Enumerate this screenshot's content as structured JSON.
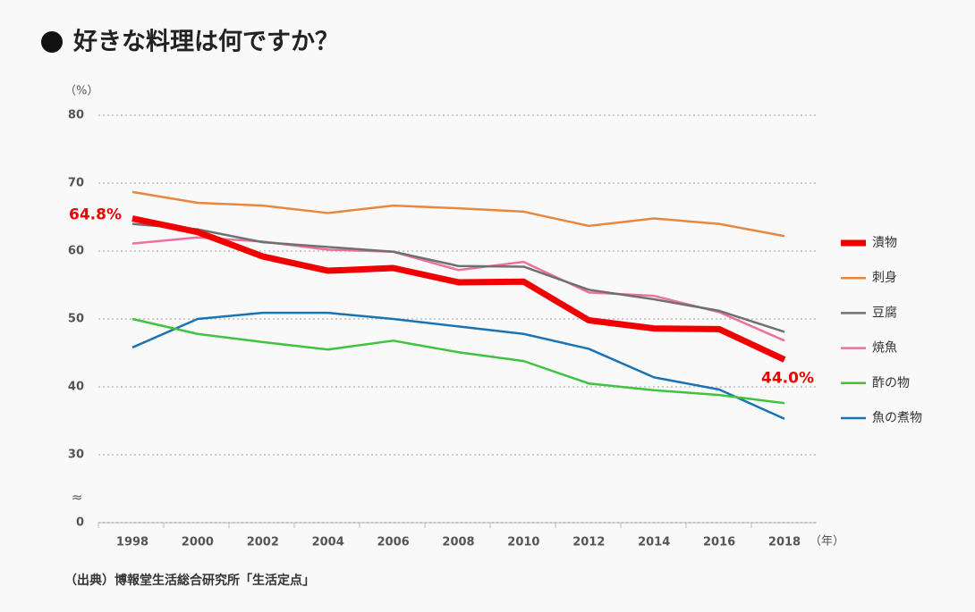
{
  "chart_data": {
    "type": "line",
    "title": "好きな料理は何ですか？",
    "y_unit_label": "（%）",
    "x_unit_label": "（年）",
    "source": "（出典）博報堂生活総合研究所「生活定点」",
    "axis_break": true,
    "axis_break_symbol": "≈",
    "categories": [
      "1998",
      "2000",
      "2002",
      "2004",
      "2006",
      "2008",
      "2010",
      "2012",
      "2014",
      "2016",
      "2018"
    ],
    "ylim": [
      0,
      80
    ],
    "yticks": [
      0,
      30,
      40,
      50,
      60,
      70,
      80
    ],
    "grid": true,
    "legend": "right",
    "series": [
      {
        "name": "漬物",
        "color": "#f00000",
        "width": 7,
        "values": [
          64.8,
          62.8,
          59.2,
          57.1,
          57.5,
          55.4,
          55.5,
          49.8,
          48.6,
          48.5,
          44.0
        ],
        "value_labels": [
          "64.8%",
          null,
          null,
          null,
          null,
          null,
          null,
          null,
          null,
          null,
          "44.0%"
        ]
      },
      {
        "name": "刺身",
        "color": "#e8883f",
        "width": 2.5,
        "values": [
          68.7,
          67.1,
          66.7,
          65.6,
          66.7,
          66.3,
          65.8,
          63.7,
          64.8,
          64.0,
          62.2
        ]
      },
      {
        "name": "豆腐",
        "color": "#707070",
        "width": 2.5,
        "values": [
          64.0,
          63.2,
          61.3,
          60.6,
          59.9,
          57.8,
          57.7,
          54.3,
          52.9,
          51.2,
          48.1
        ]
      },
      {
        "name": "焼魚",
        "color": "#ee6fa0",
        "width": 2.5,
        "values": [
          61.1,
          62.0,
          61.4,
          60.2,
          59.9,
          57.2,
          58.4,
          53.9,
          53.4,
          51.0,
          46.8
        ]
      },
      {
        "name": "酢の物",
        "color": "#3ec43e",
        "width": 2.5,
        "values": [
          50.0,
          47.8,
          46.6,
          45.5,
          46.8,
          45.1,
          43.8,
          40.5,
          39.5,
          38.8,
          37.6
        ]
      },
      {
        "name": "魚の煮物",
        "color": "#1a73b4",
        "width": 2.5,
        "values": [
          45.8,
          50.0,
          50.9,
          50.9,
          50.0,
          48.9,
          47.8,
          45.6,
          41.4,
          39.6,
          35.3
        ]
      }
    ]
  }
}
